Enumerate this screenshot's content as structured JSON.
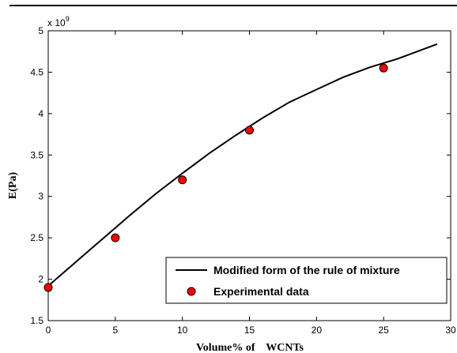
{
  "chart_data": {
    "type": "scatter",
    "title": "",
    "xlabel": "Volume% of    WCNTs",
    "ylabel": "E(Pa)",
    "y_multiplier_label": "x 10",
    "y_multiplier_exponent": "9",
    "xlim": [
      0,
      30
    ],
    "ylim": [
      1.5,
      5
    ],
    "x_ticks": [
      0,
      5,
      10,
      15,
      20,
      25,
      30
    ],
    "x_tick_labels": [
      "0",
      "5",
      "10",
      "15",
      "20",
      "25",
      "30"
    ],
    "y_ticks": [
      1.5,
      2,
      2.5,
      3,
      3.5,
      4,
      4.5,
      5
    ],
    "y_tick_labels": [
      "1.5",
      "2",
      "2.5",
      "3",
      "3.5",
      "4",
      "4.5",
      "5"
    ],
    "grid": false,
    "legend_position": "bottom-right",
    "series": [
      {
        "name": "Modified form of the rule of mixture",
        "kind": "line",
        "color": "#000000",
        "x": [
          0,
          2,
          4,
          6,
          8,
          10,
          12,
          14,
          16,
          18,
          20,
          22,
          24,
          26,
          28,
          29
        ],
        "y": [
          1.92,
          2.2,
          2.48,
          2.76,
          3.03,
          3.28,
          3.52,
          3.74,
          3.95,
          4.14,
          4.29,
          4.44,
          4.56,
          4.66,
          4.78,
          4.84
        ]
      },
      {
        "name": "Experimental data",
        "kind": "scatter",
        "color": "#ff0000",
        "edge_color": "#000000",
        "x": [
          0,
          5,
          10,
          15,
          25
        ],
        "y": [
          1.9,
          2.5,
          3.2,
          3.8,
          4.55
        ]
      }
    ]
  }
}
